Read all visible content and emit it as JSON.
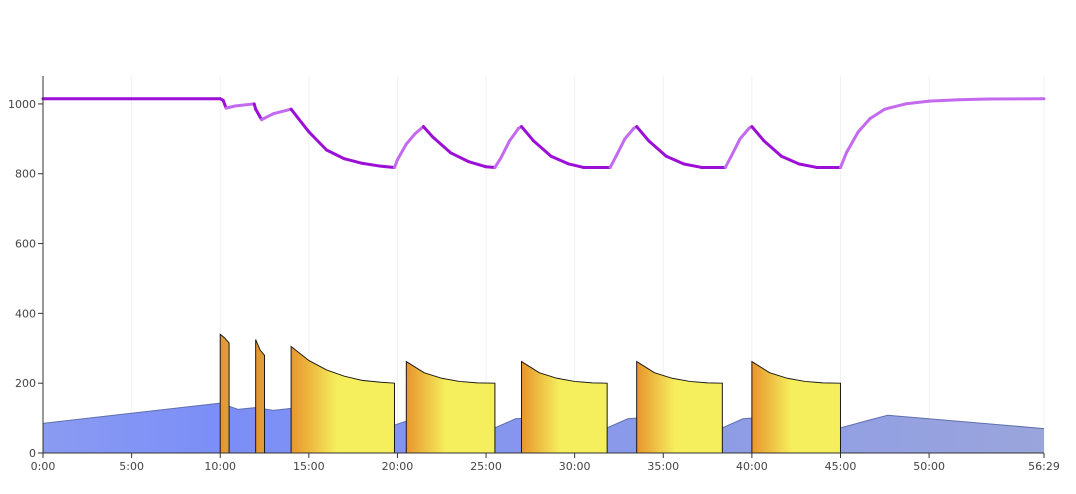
{
  "chart_data": {
    "type": "line",
    "title": "",
    "xlabel": "",
    "ylabel": "",
    "xlim_seconds": [
      0,
      3389
    ],
    "ylim": [
      0,
      1080
    ],
    "grid": "vertical-faint",
    "legend": "none",
    "x_ticks": [
      {
        "t": 0,
        "label": "0:00"
      },
      {
        "t": 300,
        "label": "5:00"
      },
      {
        "t": 600,
        "label": "10:00"
      },
      {
        "t": 900,
        "label": "15:00"
      },
      {
        "t": 1200,
        "label": "20:00"
      },
      {
        "t": 1500,
        "label": "25:00"
      },
      {
        "t": 1800,
        "label": "30:00"
      },
      {
        "t": 2100,
        "label": "35:00"
      },
      {
        "t": 2400,
        "label": "40:00"
      },
      {
        "t": 2700,
        "label": "45:00"
      },
      {
        "t": 3000,
        "label": "50:00"
      },
      {
        "t": 3389,
        "label": "56:29"
      }
    ],
    "y_ticks": [
      {
        "v": 0,
        "label": "0"
      },
      {
        "v": 200,
        "label": "200"
      },
      {
        "v": 400,
        "label": "400"
      },
      {
        "v": 600,
        "label": "600"
      },
      {
        "v": 800,
        "label": "800"
      },
      {
        "v": 1000,
        "label": "1000"
      }
    ],
    "series": [
      {
        "kind": "line",
        "color": "#9b0fd6",
        "recovery_color": "#c46af0",
        "points": [
          [
            0,
            1015
          ],
          [
            600,
            1015
          ],
          [
            610,
            1010
          ],
          [
            620,
            988
          ],
          [
            650,
            994
          ],
          [
            715,
            1000
          ],
          [
            720,
            985
          ],
          [
            740,
            955
          ],
          [
            780,
            972
          ],
          [
            840,
            985
          ],
          [
            900,
            920
          ],
          [
            960,
            868
          ],
          [
            1020,
            843
          ],
          [
            1080,
            830
          ],
          [
            1140,
            822
          ],
          [
            1190,
            818
          ],
          [
            1200,
            840
          ],
          [
            1230,
            885
          ],
          [
            1260,
            915
          ],
          [
            1288,
            935
          ],
          [
            1320,
            905
          ],
          [
            1380,
            860
          ],
          [
            1440,
            835
          ],
          [
            1500,
            820
          ],
          [
            1530,
            818
          ],
          [
            1550,
            845
          ],
          [
            1580,
            895
          ],
          [
            1610,
            930
          ],
          [
            1620,
            935
          ],
          [
            1660,
            895
          ],
          [
            1720,
            850
          ],
          [
            1780,
            828
          ],
          [
            1830,
            818
          ],
          [
            1920,
            818
          ],
          [
            1940,
            850
          ],
          [
            1970,
            900
          ],
          [
            2000,
            930
          ],
          [
            2010,
            935
          ],
          [
            2050,
            895
          ],
          [
            2110,
            850
          ],
          [
            2170,
            828
          ],
          [
            2230,
            818
          ],
          [
            2310,
            818
          ],
          [
            2330,
            850
          ],
          [
            2360,
            900
          ],
          [
            2390,
            930
          ],
          [
            2400,
            935
          ],
          [
            2440,
            895
          ],
          [
            2500,
            850
          ],
          [
            2560,
            828
          ],
          [
            2620,
            818
          ],
          [
            2700,
            818
          ],
          [
            2720,
            860
          ],
          [
            2760,
            920
          ],
          [
            2800,
            958
          ],
          [
            2850,
            985
          ],
          [
            2920,
            1000
          ],
          [
            3000,
            1008
          ],
          [
            3100,
            1012
          ],
          [
            3200,
            1014
          ],
          [
            3389,
            1015
          ]
        ]
      },
      {
        "kind": "area",
        "color": "#7b8ff5",
        "points": [
          [
            0,
            85
          ],
          [
            600,
            143
          ],
          [
            660,
            125
          ],
          [
            720,
            130
          ],
          [
            780,
            122
          ],
          [
            840,
            128
          ],
          [
            990,
            130
          ],
          [
            1150,
            125
          ],
          [
            1190,
            80
          ],
          [
            1260,
            100
          ],
          [
            1290,
            92
          ],
          [
            1450,
            108
          ],
          [
            1530,
            72
          ],
          [
            1600,
            98
          ],
          [
            1640,
            100
          ],
          [
            1810,
            108
          ],
          [
            1910,
            72
          ],
          [
            1980,
            98
          ],
          [
            2010,
            100
          ],
          [
            2190,
            108
          ],
          [
            2300,
            72
          ],
          [
            2370,
            98
          ],
          [
            2400,
            100
          ],
          [
            2570,
            108
          ],
          [
            2700,
            72
          ],
          [
            2800,
            95
          ],
          [
            2860,
            108
          ],
          [
            3389,
            70
          ]
        ]
      },
      {
        "kind": "interval-blocks",
        "colors": [
          "#e8952c",
          "#f5ef5e"
        ],
        "blocks": [
          {
            "start": 600,
            "end": 630,
            "values": [
              [
                600,
                340
              ],
              [
                615,
                330
              ],
              [
                630,
                315
              ]
            ]
          },
          {
            "start": 720,
            "end": 750,
            "values": [
              [
                720,
                325
              ],
              [
                735,
                295
              ],
              [
                750,
                280
              ]
            ]
          },
          {
            "start": 840,
            "end": 1190,
            "values": [
              [
                840,
                305
              ],
              [
                900,
                265
              ],
              [
                960,
                238
              ],
              [
                1020,
                220
              ],
              [
                1080,
                208
              ],
              [
                1140,
                203
              ],
              [
                1190,
                200
              ]
            ]
          },
          {
            "start": 1230,
            "end": 1530,
            "values": [
              [
                1230,
                262
              ],
              [
                1290,
                230
              ],
              [
                1350,
                214
              ],
              [
                1410,
                205
              ],
              [
                1470,
                201
              ],
              [
                1530,
                200
              ]
            ]
          },
          {
            "start": 1620,
            "end": 1910,
            "values": [
              [
                1620,
                262
              ],
              [
                1680,
                230
              ],
              [
                1740,
                214
              ],
              [
                1800,
                205
              ],
              [
                1860,
                201
              ],
              [
                1910,
                200
              ]
            ]
          },
          {
            "start": 2010,
            "end": 2300,
            "values": [
              [
                2010,
                262
              ],
              [
                2070,
                230
              ],
              [
                2130,
                214
              ],
              [
                2190,
                205
              ],
              [
                2250,
                201
              ],
              [
                2300,
                200
              ]
            ]
          },
          {
            "start": 2400,
            "end": 2700,
            "values": [
              [
                2400,
                262
              ],
              [
                2460,
                230
              ],
              [
                2520,
                214
              ],
              [
                2580,
                205
              ],
              [
                2640,
                201
              ],
              [
                2700,
                200
              ]
            ]
          }
        ]
      }
    ]
  }
}
